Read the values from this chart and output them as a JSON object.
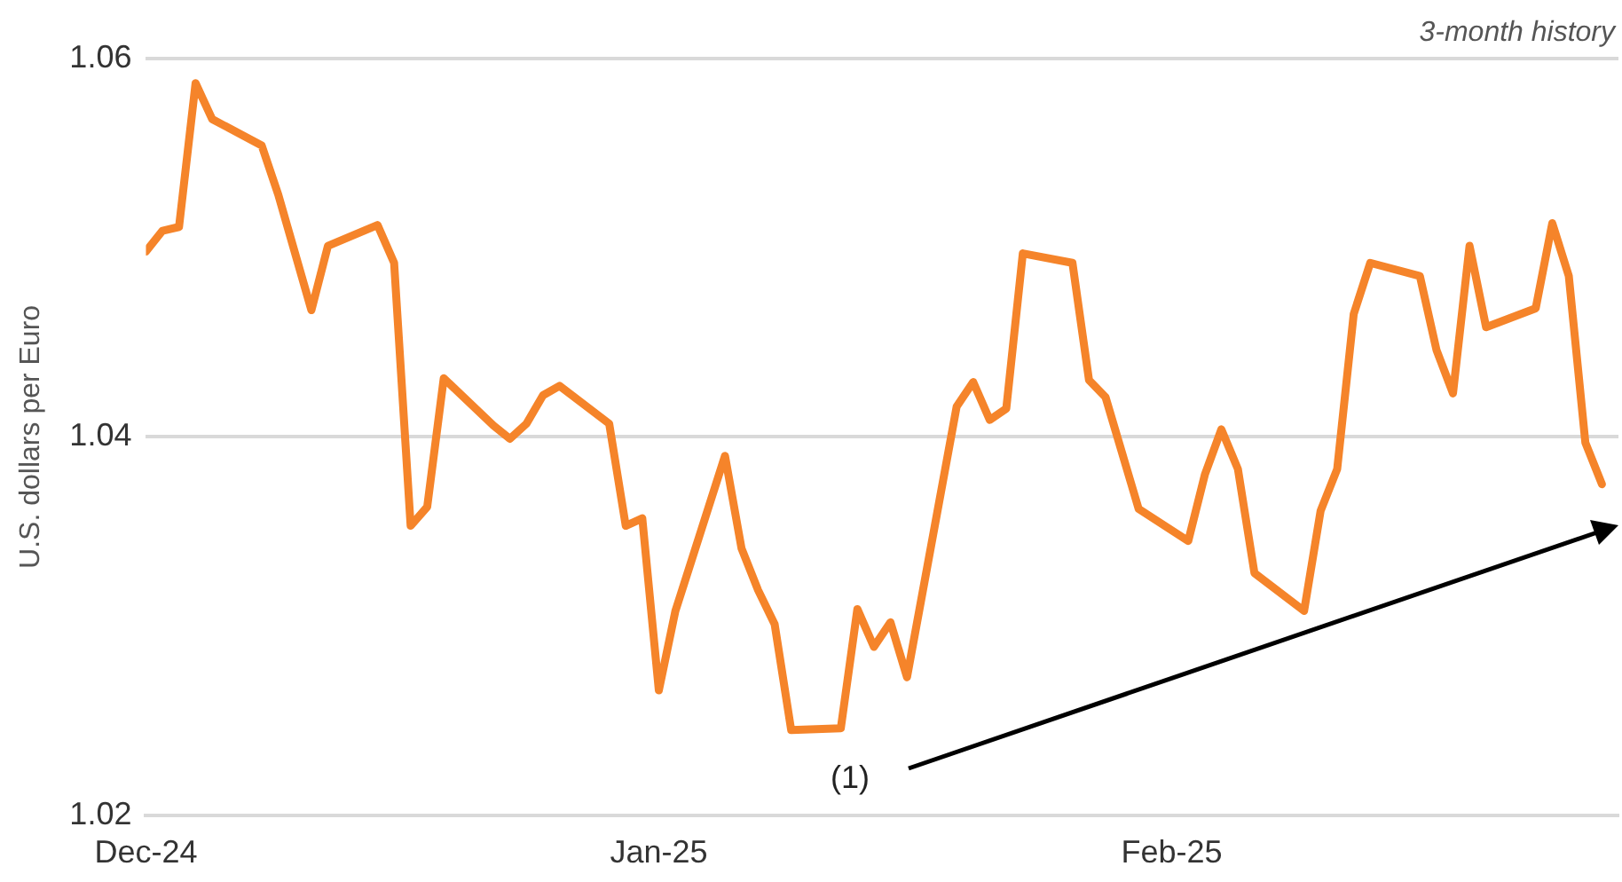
{
  "chart_data": {
    "type": "line",
    "ylabel": "U.S. dollars per Euro",
    "annotations": [
      "3-month history",
      "(1)"
    ],
    "x": [
      "2024-12-01",
      "2024-12-02",
      "2024-12-03",
      "2024-12-04",
      "2024-12-05",
      "2024-12-08",
      "2024-12-09",
      "2024-12-11",
      "2024-12-12",
      "2024-12-15",
      "2024-12-16",
      "2024-12-17",
      "2024-12-18",
      "2024-12-19",
      "2024-12-22",
      "2024-12-23",
      "2024-12-24",
      "2024-12-25",
      "2024-12-26",
      "2024-12-29",
      "2024-12-30",
      "2024-12-31",
      "2025-01-01",
      "2025-01-02",
      "2025-01-05",
      "2025-01-06",
      "2025-01-07",
      "2025-01-08",
      "2025-01-09",
      "2025-01-12",
      "2025-01-13",
      "2025-01-14",
      "2025-01-15",
      "2025-01-16",
      "2025-01-19",
      "2025-01-20",
      "2025-01-21",
      "2025-01-22",
      "2025-01-23",
      "2025-01-26",
      "2025-01-27",
      "2025-01-28",
      "2025-01-30",
      "2025-02-02",
      "2025-02-03",
      "2025-02-04",
      "2025-02-05",
      "2025-02-06",
      "2025-02-09",
      "2025-02-10",
      "2025-02-11",
      "2025-02-12",
      "2025-02-13",
      "2025-02-16",
      "2025-02-17",
      "2025-02-18",
      "2025-02-19",
      "2025-02-20",
      "2025-02-23",
      "2025-02-24",
      "2025-02-25",
      "2025-02-26",
      "2025-02-27"
    ],
    "series": [
      {
        "color": "#f5842a",
        "values": [
          1.0498,
          1.0509,
          1.0511,
          1.0587,
          1.0568,
          1.0554,
          1.0528,
          1.0467,
          1.0501,
          1.0512,
          1.0492,
          1.0353,
          1.0363,
          1.0431,
          1.0406,
          1.0399,
          1.0407,
          1.0422,
          1.0427,
          1.0407,
          1.0353,
          1.0357,
          1.0266,
          1.0308,
          1.039,
          1.0341,
          1.0319,
          1.0301,
          1.0245,
          1.0246,
          1.0309,
          1.0289,
          1.0302,
          1.0273,
          1.0416,
          1.0429,
          1.0409,
          1.0415,
          1.0497,
          1.0492,
          1.043,
          1.0421,
          1.0362,
          1.0345,
          1.038,
          1.0404,
          1.0383,
          1.0328,
          1.0308,
          1.0361,
          1.0383,
          1.0465,
          1.0492,
          1.0485,
          1.0446,
          1.0423,
          1.0501,
          1.0458,
          1.0468,
          1.0513,
          1.0485,
          1.0397,
          1.0375
        ]
      }
    ],
    "xlim": [
      "2024-12-01",
      "2025-02-28"
    ],
    "xticks": [
      {
        "value": "2024-12-01",
        "label": "Dec-24"
      },
      {
        "value": "2025-01-01",
        "label": "Jan-25"
      },
      {
        "value": "2025-02-01",
        "label": "Feb-25"
      }
    ],
    "ylim": [
      1.02,
      1.06
    ],
    "yticks": [
      1.02,
      1.04,
      1.06
    ],
    "grid": "y",
    "legend": false,
    "marker": "none",
    "line_style": "solid"
  }
}
